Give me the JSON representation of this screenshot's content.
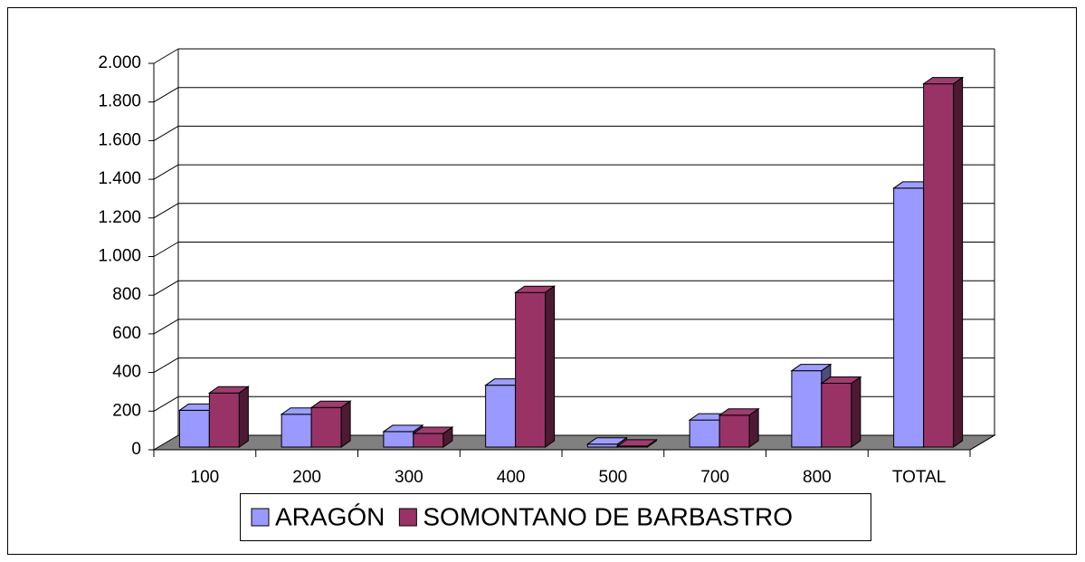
{
  "chart_data": {
    "type": "bar3d",
    "categories": [
      "100",
      "200",
      "300",
      "400",
      "500",
      "700",
      "800",
      "TOTAL"
    ],
    "series": [
      {
        "name": "ARAGÓN",
        "color": "#9999ff",
        "values": [
          190,
          170,
          80,
          320,
          15,
          140,
          395,
          1340
        ]
      },
      {
        "name": "SOMONTANO DE BARBASTRO",
        "color": "#993366",
        "values": [
          280,
          205,
          70,
          800,
          5,
          165,
          330,
          1880
        ]
      }
    ],
    "ylim": [
      0,
      2000
    ],
    "yticks": [
      0,
      200,
      400,
      600,
      800,
      {
        "value": 1000,
        "label": "1.000"
      },
      {
        "value": 1200,
        "label": "1.200"
      },
      {
        "value": 1400,
        "label": "1.400"
      },
      {
        "value": 1600,
        "label": "1.600"
      },
      {
        "value": 1800,
        "label": "1.800"
      },
      {
        "value": 2000,
        "label": "2.000"
      }
    ],
    "grid": true,
    "legend": "bottom",
    "floor_color": "#808080"
  }
}
